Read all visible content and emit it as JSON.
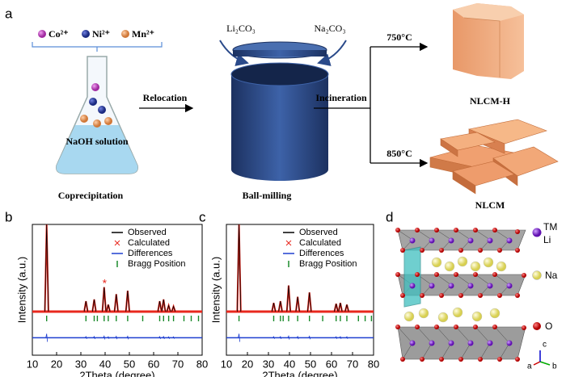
{
  "panel_a": {
    "label": "a",
    "ions": [
      "Co²⁺",
      "Ni²⁺",
      "Mn²⁺"
    ],
    "flask_text": "NaOH solution",
    "reagents": [
      "Li₂CO₃",
      "Na₂CO₃"
    ],
    "steps": [
      "Relocation",
      "Incineration"
    ],
    "temperatures": [
      "750°C",
      "850°C"
    ],
    "products": [
      "NLCM-H",
      "NLCM"
    ],
    "stages": [
      "Coprecipitation",
      "Ball-milling"
    ]
  },
  "chart_data": [
    {
      "type": "xrd",
      "label": "b",
      "xlabel": "2Theta (degree)",
      "ylabel": "Intensity (a.u.)",
      "xlim": [
        10,
        80
      ],
      "xticks": [
        10,
        20,
        30,
        40,
        50,
        60,
        70,
        80
      ],
      "ylim": [
        -50,
        100
      ],
      "legend": [
        "Observed",
        "Calculated",
        "Differences",
        "Bragg Position"
      ],
      "colors": {
        "observed": "#000000",
        "calculated": "#e8281e",
        "differences": "#1f3fd0",
        "bragg": "#1a8a2a"
      },
      "peaks_x": [
        15.9,
        32.1,
        35.5,
        39.6,
        41.3,
        44.6,
        49.3,
        62.5,
        64.1,
        66.2,
        68.2
      ],
      "peaks_y": [
        100,
        12,
        14,
        28,
        8,
        20,
        24,
        12,
        14,
        7,
        6
      ],
      "annotation": "*",
      "annotation_x": 39.8,
      "bragg": [
        15.9,
        32.1,
        35.5,
        36.8,
        39.6,
        41.3,
        44.6,
        49.3,
        55.5,
        62.5,
        64.1,
        66.2,
        68.2,
        72.5,
        75.5,
        78.5
      ]
    },
    {
      "type": "xrd",
      "label": "c",
      "xlabel": "2Theta (degree)",
      "ylabel": "Intensity (a.u.)",
      "xlim": [
        10,
        80
      ],
      "xticks": [
        10,
        20,
        30,
        40,
        50,
        60,
        70,
        80
      ],
      "ylim": [
        -50,
        100
      ],
      "legend": [
        "Observed",
        "Calculated",
        "Differences",
        "Bragg Position"
      ],
      "colors": {
        "observed": "#000000",
        "calculated": "#e8281e",
        "differences": "#1f3fd0",
        "bragg": "#1a8a2a"
      },
      "peaks_x": [
        16.0,
        32.5,
        35.7,
        39.6,
        43.9,
        49.5,
        62.2,
        64.2,
        67.3
      ],
      "peaks_y": [
        100,
        10,
        12,
        30,
        17,
        22,
        9,
        10,
        8
      ],
      "bragg": [
        16.0,
        32.5,
        35.7,
        37.0,
        39.6,
        43.9,
        49.5,
        55.8,
        62.2,
        64.2,
        67.3,
        72.8,
        76.0,
        79.0
      ]
    }
  ],
  "panel_d": {
    "label": "d",
    "legend": [
      "TM",
      "Li",
      "Na",
      "O"
    ],
    "axes": [
      "a",
      "b",
      "c"
    ]
  }
}
